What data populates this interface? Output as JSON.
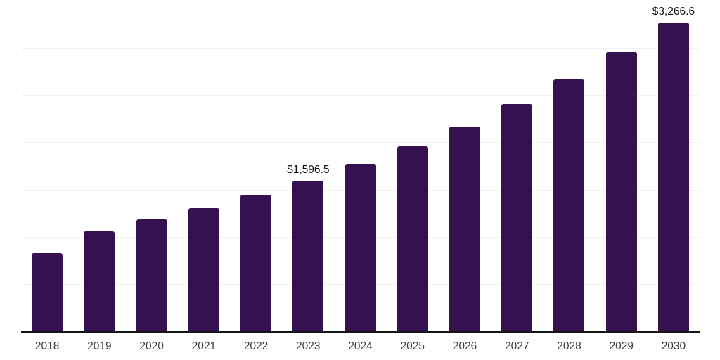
{
  "chart_data": {
    "type": "bar",
    "title": "",
    "categories": [
      "2018",
      "2019",
      "2020",
      "2021",
      "2022",
      "2023",
      "2024",
      "2025",
      "2026",
      "2027",
      "2028",
      "2029",
      "2030"
    ],
    "values": [
      830,
      1060,
      1185,
      1305,
      1445,
      1596.5,
      1770,
      1958,
      2167,
      2403,
      2663,
      2958,
      3266.6
    ],
    "annotations": [
      {
        "category": "2023",
        "label": "$1,596.5"
      },
      {
        "category": "2030",
        "label": "$3,266.6"
      }
    ],
    "xlabel": "",
    "ylabel": "",
    "ylim": [
      0,
      3500
    ],
    "gridline_step": 500,
    "grid": "horizontal",
    "legend_position": "none",
    "bar_color": "#36114F",
    "axis_color": "#141414",
    "gridline_color": "#f2f2f3",
    "tick_label_color": "#3d3d3d",
    "annotation_color": "#111111"
  }
}
